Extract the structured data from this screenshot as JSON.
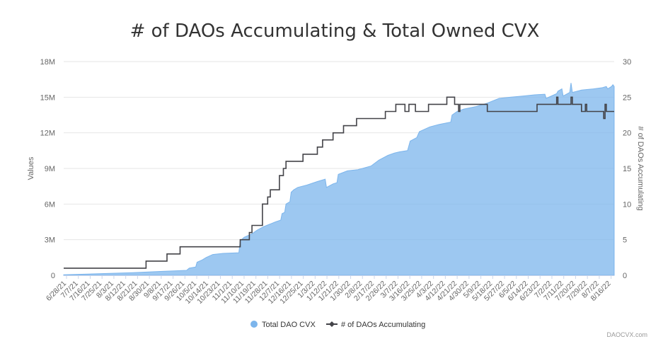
{
  "chart_data": {
    "type": "area",
    "title": "# of DAOs Accumulating & Total Owned CVX",
    "y_left_label": "Values",
    "y_right_label": "# of DAOs Accumulating",
    "y_left_ticks": [
      "0",
      "3M",
      "6M",
      "9M",
      "12M",
      "15M",
      "18M"
    ],
    "y_left_lim": [
      0,
      18000000
    ],
    "y_right_ticks": [
      "0",
      "5",
      "10",
      "15",
      "20",
      "25",
      "30"
    ],
    "y_right_lim": [
      0,
      30
    ],
    "x_start": "2021-06-28",
    "x_end": "2022-08-23",
    "x_tick_labels": [
      "6/28/21",
      "7/7/21",
      "7/16/21",
      "7/25/21",
      "8/3/21",
      "8/12/21",
      "8/21/21",
      "8/30/21",
      "9/8/21",
      "9/17/21",
      "9/26/21",
      "10/5/21",
      "10/14/21",
      "10/23/21",
      "11/1/21",
      "11/10/21",
      "11/19/21",
      "11/28/21",
      "12/7/21",
      "12/16/21",
      "12/25/21",
      "1/3/22",
      "1/12/22",
      "1/21/22",
      "1/30/22",
      "2/8/22",
      "2/17/22",
      "2/26/22",
      "3/7/22",
      "3/16/22",
      "3/25/22",
      "4/3/22",
      "4/12/22",
      "4/21/22",
      "4/30/22",
      "5/9/22",
      "5/18/22",
      "5/27/22",
      "6/5/22",
      "6/14/22",
      "6/23/22",
      "7/2/22",
      "7/11/22",
      "7/20/22",
      "7/29/22",
      "8/7/22",
      "8/16/22"
    ],
    "grid": true,
    "legend_position": "bottom-center",
    "series": [
      {
        "name": "Total DAO CVX",
        "type": "area",
        "axis": "left",
        "color": "#7cb5ec",
        "points": [
          [
            "2021-06-28",
            50000
          ],
          [
            "2021-07-20",
            120000
          ],
          [
            "2021-08-20",
            220000
          ],
          [
            "2021-09-10",
            330000
          ],
          [
            "2021-09-30",
            420000
          ],
          [
            "2021-10-02",
            600000
          ],
          [
            "2021-10-07",
            700000
          ],
          [
            "2021-10-08",
            1100000
          ],
          [
            "2021-10-12",
            1300000
          ],
          [
            "2021-10-15",
            1500000
          ],
          [
            "2021-10-20",
            1750000
          ],
          [
            "2021-10-28",
            1850000
          ],
          [
            "2021-11-09",
            1900000
          ],
          [
            "2021-11-10",
            2900000
          ],
          [
            "2021-11-13",
            3200000
          ],
          [
            "2021-11-19",
            3500000
          ],
          [
            "2021-11-23",
            3800000
          ],
          [
            "2021-11-28",
            4100000
          ],
          [
            "2021-12-07",
            4500000
          ],
          [
            "2021-12-11",
            4650000
          ],
          [
            "2021-12-12",
            5200000
          ],
          [
            "2021-12-14",
            5300000
          ],
          [
            "2021-12-15",
            6000000
          ],
          [
            "2021-12-18",
            6200000
          ],
          [
            "2021-12-19",
            7000000
          ],
          [
            "2021-12-21",
            7200000
          ],
          [
            "2021-12-24",
            7400000
          ],
          [
            "2021-12-31",
            7600000
          ],
          [
            "2022-01-08",
            7900000
          ],
          [
            "2022-01-14",
            8100000
          ],
          [
            "2022-01-15",
            7400000
          ],
          [
            "2022-01-20",
            7700000
          ],
          [
            "2022-01-23",
            7800000
          ],
          [
            "2022-01-24",
            8500000
          ],
          [
            "2022-01-31",
            8800000
          ],
          [
            "2022-02-08",
            8900000
          ],
          [
            "2022-02-18",
            9200000
          ],
          [
            "2022-02-24",
            9700000
          ],
          [
            "2022-03-03",
            10100000
          ],
          [
            "2022-03-08",
            10300000
          ],
          [
            "2022-03-12",
            10400000
          ],
          [
            "2022-03-18",
            10500000
          ],
          [
            "2022-03-20",
            11300000
          ],
          [
            "2022-03-25",
            11600000
          ],
          [
            "2022-03-27",
            12100000
          ],
          [
            "2022-04-04",
            12500000
          ],
          [
            "2022-04-11",
            12700000
          ],
          [
            "2022-04-20",
            12900000
          ],
          [
            "2022-04-21",
            13500000
          ],
          [
            "2022-04-25",
            13800000
          ],
          [
            "2022-04-30",
            14000000
          ],
          [
            "2022-05-09",
            14200000
          ],
          [
            "2022-05-18",
            14500000
          ],
          [
            "2022-05-27",
            14900000
          ],
          [
            "2022-06-05",
            15000000
          ],
          [
            "2022-06-14",
            15100000
          ],
          [
            "2022-06-23",
            15200000
          ],
          [
            "2022-07-01",
            15250000
          ],
          [
            "2022-07-02",
            14900000
          ],
          [
            "2022-07-08",
            15200000
          ],
          [
            "2022-07-10",
            15300000
          ],
          [
            "2022-07-11",
            15500000
          ],
          [
            "2022-07-14",
            15700000
          ],
          [
            "2022-07-15",
            15100000
          ],
          [
            "2022-07-20",
            15400000
          ],
          [
            "2022-07-21",
            16200000
          ],
          [
            "2022-07-22",
            15400000
          ],
          [
            "2022-07-29",
            15600000
          ],
          [
            "2022-08-07",
            15700000
          ],
          [
            "2022-08-14",
            15800000
          ],
          [
            "2022-08-17",
            15900000
          ],
          [
            "2022-08-18",
            15700000
          ],
          [
            "2022-08-21",
            15900000
          ],
          [
            "2022-08-22",
            16050000
          ],
          [
            "2022-08-23",
            15900000
          ]
        ]
      },
      {
        "name": "# of DAOs Accumulating",
        "type": "step-line",
        "axis": "right",
        "color": "#434348",
        "points": [
          [
            "2021-06-28",
            1
          ],
          [
            "2021-08-30",
            2
          ],
          [
            "2021-09-15",
            3
          ],
          [
            "2021-09-25",
            4
          ],
          [
            "2021-11-10",
            5
          ],
          [
            "2021-11-17",
            6
          ],
          [
            "2021-11-19",
            7
          ],
          [
            "2021-11-27",
            10
          ],
          [
            "2021-12-01",
            11
          ],
          [
            "2021-12-03",
            12
          ],
          [
            "2021-12-10",
            14
          ],
          [
            "2021-12-13",
            15
          ],
          [
            "2021-12-15",
            16
          ],
          [
            "2021-12-28",
            17
          ],
          [
            "2022-01-08",
            18
          ],
          [
            "2022-01-12",
            19
          ],
          [
            "2022-01-20",
            20
          ],
          [
            "2022-01-28",
            21
          ],
          [
            "2022-02-07",
            22
          ],
          [
            "2022-03-01",
            23
          ],
          [
            "2022-03-09",
            24
          ],
          [
            "2022-03-16",
            23
          ],
          [
            "2022-03-19",
            24
          ],
          [
            "2022-03-24",
            23
          ],
          [
            "2022-04-03",
            24
          ],
          [
            "2022-04-17",
            25
          ],
          [
            "2022-04-23",
            24
          ],
          [
            "2022-04-26",
            23
          ],
          [
            "2022-04-27",
            24
          ],
          [
            "2022-05-18",
            23
          ],
          [
            "2022-06-25",
            24
          ],
          [
            "2022-07-10",
            25
          ],
          [
            "2022-07-11",
            24
          ],
          [
            "2022-07-21",
            25
          ],
          [
            "2022-07-22",
            24
          ],
          [
            "2022-07-29",
            23
          ],
          [
            "2022-08-01",
            24
          ],
          [
            "2022-08-02",
            23
          ],
          [
            "2022-08-15",
            22
          ],
          [
            "2022-08-16",
            24
          ],
          [
            "2022-08-17",
            23
          ],
          [
            "2022-08-23",
            23
          ]
        ]
      }
    ]
  },
  "credit": "DAOCVX.com"
}
